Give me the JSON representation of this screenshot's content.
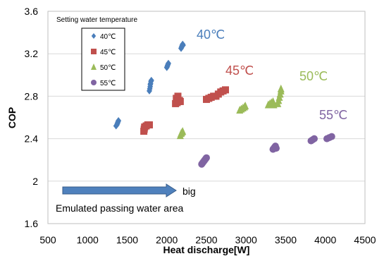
{
  "chart_data": {
    "type": "scatter",
    "xlabel": "Heat discharge[W]",
    "ylabel": "COP",
    "xlim": [
      500,
      4500
    ],
    "ylim": [
      1.6,
      3.6
    ],
    "x_ticks": [
      "500",
      "1000",
      "1500",
      "2000",
      "2500",
      "3000",
      "3500",
      "4000",
      "4500"
    ],
    "y_ticks": [
      "1.6",
      "2",
      "2.4",
      "2.8",
      "3.2",
      "3.6"
    ],
    "x_tick_values": [
      500,
      1000,
      1500,
      2000,
      2500,
      3000,
      3500,
      4000,
      4500
    ],
    "y_tick_values": [
      1.6,
      2.0,
      2.4,
      2.8,
      3.2,
      3.6
    ],
    "grid": "horizontal",
    "legend": {
      "title": "Setting water temperature",
      "placement": "top-left"
    },
    "annotations": {
      "arrow_label": "big",
      "area_label": "Emulated passing water area"
    },
    "series": [
      {
        "name": "40℃",
        "label": "40℃",
        "marker": "diamond",
        "color": "#4A7EBB",
        "points": [
          [
            1360,
            2.52
          ],
          [
            1370,
            2.53
          ],
          [
            1375,
            2.54
          ],
          [
            1380,
            2.55
          ],
          [
            1385,
            2.56
          ],
          [
            1390,
            2.57
          ],
          [
            1780,
            2.85
          ],
          [
            1785,
            2.87
          ],
          [
            1790,
            2.89
          ],
          [
            1792,
            2.91
          ],
          [
            1795,
            2.92
          ],
          [
            1800,
            2.94
          ],
          [
            1805,
            2.95
          ],
          [
            2000,
            3.07
          ],
          [
            2005,
            3.08
          ],
          [
            2010,
            3.09
          ],
          [
            2015,
            3.1
          ],
          [
            2020,
            3.11
          ],
          [
            2180,
            3.25
          ],
          [
            2185,
            3.26
          ],
          [
            2190,
            3.27
          ],
          [
            2195,
            3.28
          ],
          [
            2200,
            3.29
          ],
          [
            2205,
            3.28
          ]
        ]
      },
      {
        "name": "45℃",
        "label": "45℃",
        "marker": "square",
        "color": "#C0504D",
        "points": [
          [
            1710,
            2.47
          ],
          [
            1715,
            2.49
          ],
          [
            1720,
            2.51
          ],
          [
            1740,
            2.52
          ],
          [
            1760,
            2.53
          ],
          [
            1780,
            2.53
          ],
          [
            2110,
            2.73
          ],
          [
            2130,
            2.74
          ],
          [
            2150,
            2.75
          ],
          [
            2170,
            2.75
          ],
          [
            2120,
            2.78
          ],
          [
            2140,
            2.8
          ],
          [
            2160,
            2.76
          ],
          [
            2500,
            2.77
          ],
          [
            2530,
            2.78
          ],
          [
            2560,
            2.79
          ],
          [
            2590,
            2.8
          ],
          [
            2620,
            2.8
          ],
          [
            2650,
            2.82
          ],
          [
            2680,
            2.84
          ],
          [
            2710,
            2.85
          ],
          [
            2740,
            2.86
          ]
        ]
      },
      {
        "name": "50℃",
        "label": "50℃",
        "marker": "triangle",
        "color": "#9BBB59",
        "points": [
          [
            2170,
            2.43
          ],
          [
            2180,
            2.45
          ],
          [
            2190,
            2.46
          ],
          [
            2200,
            2.47
          ],
          [
            2920,
            2.67
          ],
          [
            2940,
            2.68
          ],
          [
            2960,
            2.69
          ],
          [
            2980,
            2.7
          ],
          [
            2990,
            2.71
          ],
          [
            3280,
            2.72
          ],
          [
            3300,
            2.73
          ],
          [
            3320,
            2.74
          ],
          [
            3340,
            2.75
          ],
          [
            3350,
            2.72
          ],
          [
            3400,
            2.73
          ],
          [
            3410,
            2.76
          ],
          [
            3420,
            2.79
          ],
          [
            3430,
            2.82
          ],
          [
            3440,
            2.85
          ],
          [
            3440,
            2.87
          ]
        ]
      },
      {
        "name": "55℃",
        "label": "55℃",
        "marker": "circle",
        "color": "#8064A2",
        "points": [
          [
            2440,
            2.16
          ],
          [
            2450,
            2.17
          ],
          [
            2460,
            2.18
          ],
          [
            2470,
            2.19
          ],
          [
            2480,
            2.2
          ],
          [
            2490,
            2.21
          ],
          [
            2500,
            2.22
          ],
          [
            3340,
            2.3
          ],
          [
            3350,
            2.31
          ],
          [
            3360,
            2.32
          ],
          [
            3370,
            2.33
          ],
          [
            3380,
            2.31
          ],
          [
            3820,
            2.38
          ],
          [
            3840,
            2.39
          ],
          [
            3860,
            2.4
          ],
          [
            4020,
            2.4
          ],
          [
            4050,
            2.41
          ],
          [
            4080,
            2.42
          ]
        ]
      }
    ]
  }
}
